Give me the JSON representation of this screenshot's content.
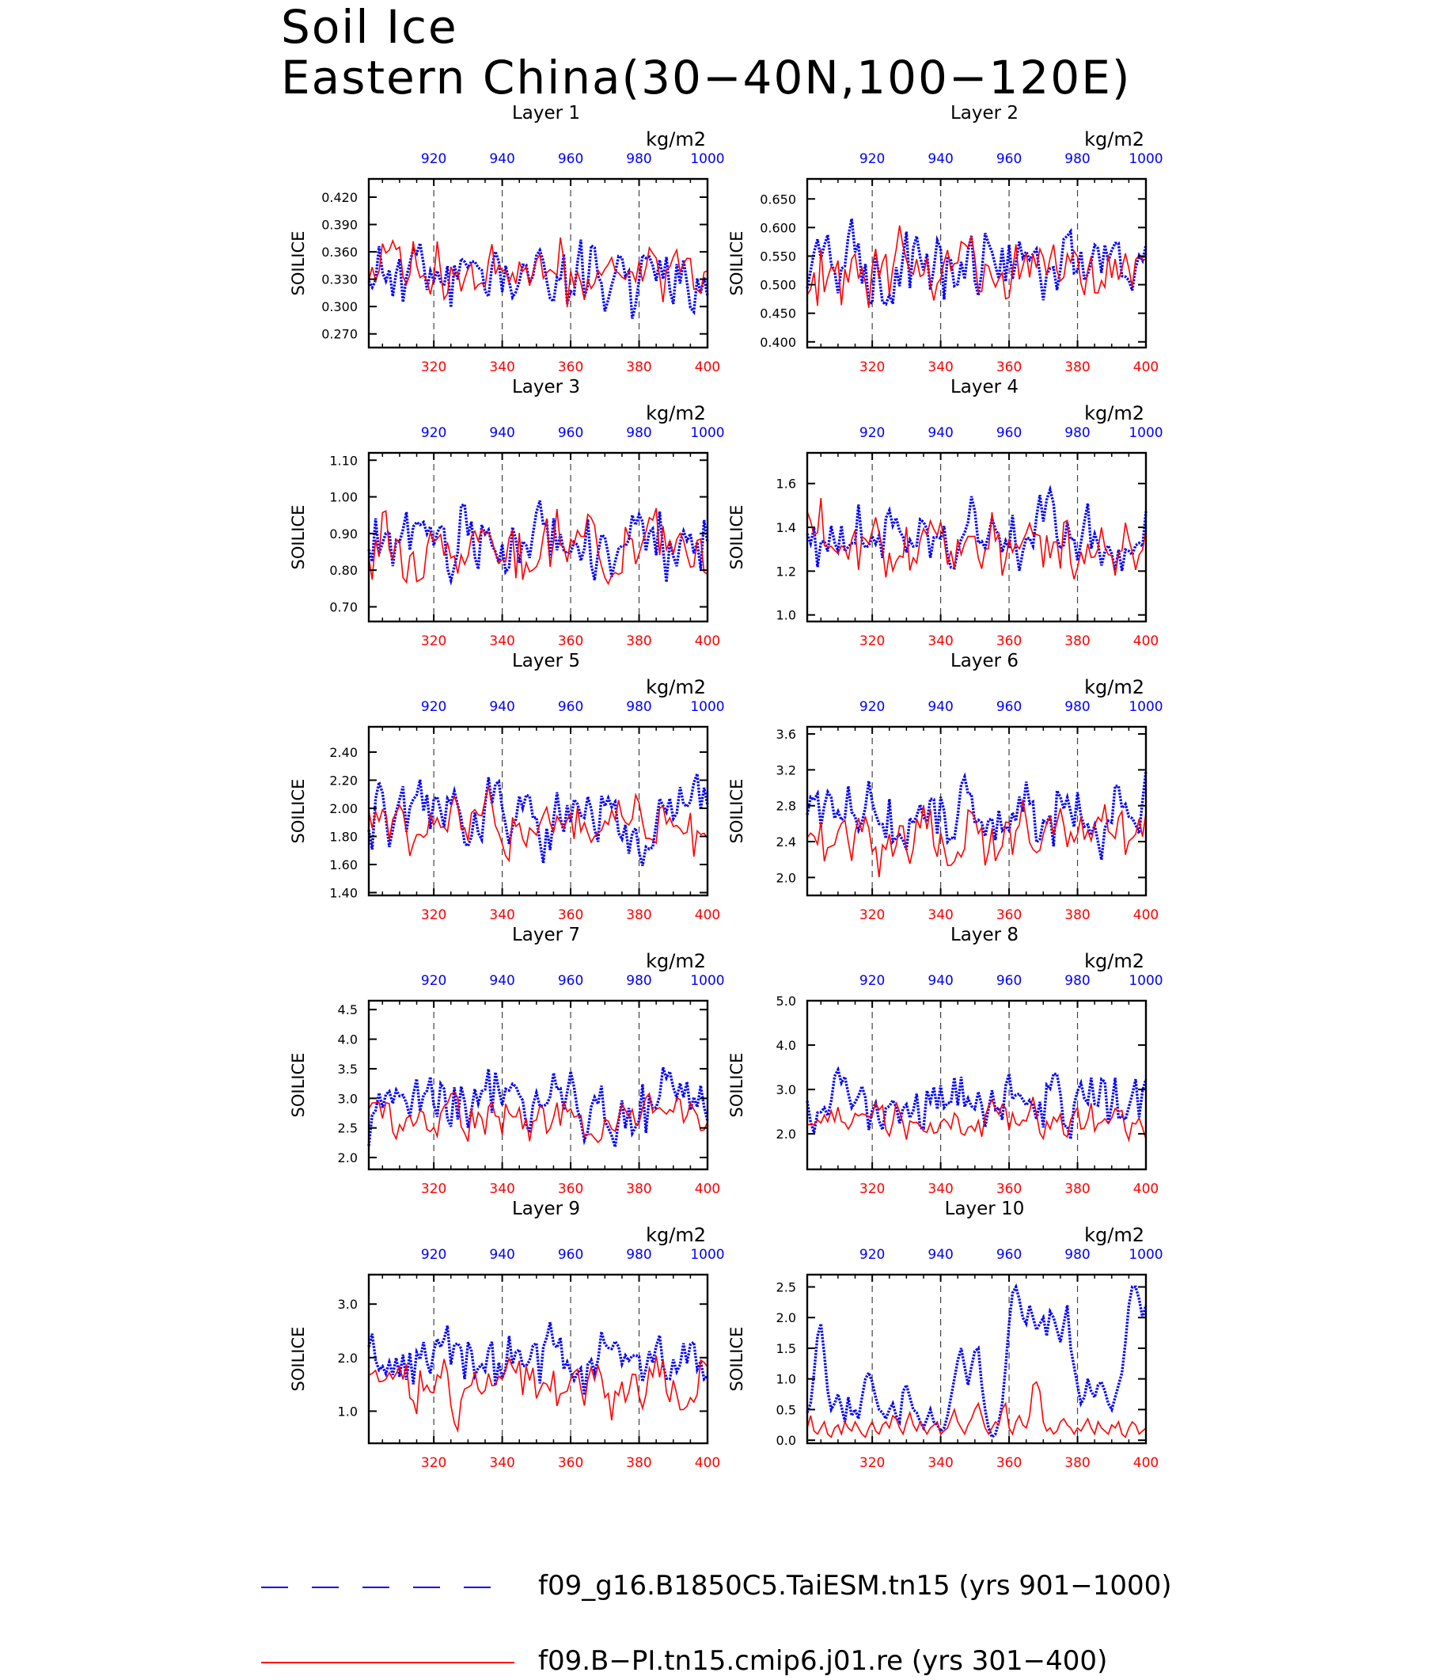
{
  "figure": {
    "title_line1": "Soil Ice",
    "title_line2": "Eastern China(30−40N,100−120E)"
  },
  "colors": {
    "blue": "#0000ff",
    "red": "#ff0000",
    "axis": "#000000",
    "grid": "#444444"
  },
  "legend": [
    {
      "label": "f09_g16.B1850C5.TaiESM.tn15 (yrs 901−1000)",
      "color": "#0000ff",
      "style": "dashed"
    },
    {
      "label": "f09.B−PI.tn15.cmip6.j01.re (yrs 301−400)",
      "color": "#ff0000",
      "style": "solid"
    }
  ],
  "chart_data": [
    {
      "type": "line",
      "title": "Layer 1",
      "ylabel": "SOILICE",
      "units": "kg/m2",
      "bottom_axis": {
        "range": [
          301,
          400
        ],
        "ticks": [
          320,
          340,
          360,
          380,
          400
        ],
        "color": "#ff0000"
      },
      "top_axis": {
        "range": [
          901,
          1000
        ],
        "ticks": [
          920,
          940,
          960,
          980,
          1000
        ],
        "color": "#0000ff"
      },
      "ylim": [
        0.255,
        0.44
      ],
      "yticks": [
        "0.270",
        "0.300",
        "0.330",
        "0.360",
        "0.390",
        "0.420"
      ],
      "series": [
        {
          "color": "#0000ff",
          "style": "dotted",
          "mean": 0.335,
          "amp": 0.035,
          "seed": 11
        },
        {
          "color": "#ff0000",
          "style": "solid",
          "mean": 0.34,
          "amp": 0.032,
          "seed": 12
        }
      ]
    },
    {
      "type": "line",
      "title": "Layer 2",
      "ylabel": "SOILICE",
      "units": "kg/m2",
      "bottom_axis": {
        "range": [
          301,
          400
        ],
        "ticks": [
          320,
          340,
          360,
          380,
          400
        ],
        "color": "#ff0000"
      },
      "top_axis": {
        "range": [
          901,
          1000
        ],
        "ticks": [
          920,
          940,
          960,
          980,
          1000
        ],
        "color": "#0000ff"
      },
      "ylim": [
        0.39,
        0.685
      ],
      "yticks": [
        "0.400",
        "0.450",
        "0.500",
        "0.550",
        "0.600",
        "0.650"
      ],
      "series": [
        {
          "color": "#0000ff",
          "style": "dotted",
          "mean": 0.535,
          "amp": 0.055,
          "seed": 21
        },
        {
          "color": "#ff0000",
          "style": "solid",
          "mean": 0.53,
          "amp": 0.052,
          "seed": 22
        }
      ]
    },
    {
      "type": "line",
      "title": "Layer 3",
      "ylabel": "SOILICE",
      "units": "kg/m2",
      "bottom_axis": {
        "range": [
          301,
          400
        ],
        "ticks": [
          320,
          340,
          360,
          380,
          400
        ],
        "color": "#ff0000"
      },
      "top_axis": {
        "range": [
          901,
          1000
        ],
        "ticks": [
          920,
          940,
          960,
          980,
          1000
        ],
        "color": "#0000ff"
      },
      "ylim": [
        0.66,
        1.12
      ],
      "yticks": [
        "0.70",
        "0.80",
        "0.90",
        "1.00",
        "1.10"
      ],
      "series": [
        {
          "color": "#0000ff",
          "style": "dotted",
          "mean": 0.88,
          "amp": 0.085,
          "seed": 31
        },
        {
          "color": "#ff0000",
          "style": "solid",
          "mean": 0.87,
          "amp": 0.08,
          "seed": 32
        }
      ]
    },
    {
      "type": "line",
      "title": "Layer 4",
      "ylabel": "SOILICE",
      "units": "kg/m2",
      "bottom_axis": {
        "range": [
          301,
          400
        ],
        "ticks": [
          320,
          340,
          360,
          380,
          400
        ],
        "color": "#ff0000"
      },
      "top_axis": {
        "range": [
          901,
          1000
        ],
        "ticks": [
          920,
          940,
          960,
          980,
          1000
        ],
        "color": "#0000ff"
      },
      "ylim": [
        0.97,
        1.74
      ],
      "yticks": [
        "1.0",
        "1.2",
        "1.4",
        "1.6"
      ],
      "series": [
        {
          "color": "#0000ff",
          "style": "dotted",
          "mean": 1.34,
          "amp": 0.15,
          "seed": 41
        },
        {
          "color": "#ff0000",
          "style": "solid",
          "mean": 1.32,
          "amp": 0.14,
          "seed": 42
        }
      ]
    },
    {
      "type": "line",
      "title": "Layer 5",
      "ylabel": "SOILICE",
      "units": "kg/m2",
      "bottom_axis": {
        "range": [
          301,
          400
        ],
        "ticks": [
          320,
          340,
          360,
          380,
          400
        ],
        "color": "#ff0000"
      },
      "top_axis": {
        "range": [
          901,
          1000
        ],
        "ticks": [
          920,
          940,
          960,
          980,
          1000
        ],
        "color": "#0000ff"
      },
      "ylim": [
        1.38,
        2.58
      ],
      "yticks": [
        "1.40",
        "1.60",
        "1.80",
        "2.00",
        "2.20",
        "2.40"
      ],
      "series": [
        {
          "color": "#0000ff",
          "style": "dotted",
          "mean": 1.93,
          "amp": 0.24,
          "seed": 51
        },
        {
          "color": "#ff0000",
          "style": "solid",
          "mean": 1.87,
          "amp": 0.21,
          "seed": 52
        }
      ]
    },
    {
      "type": "line",
      "title": "Layer 6",
      "ylabel": "SOILICE",
      "units": "kg/m2",
      "bottom_axis": {
        "range": [
          301,
          400
        ],
        "ticks": [
          320,
          340,
          360,
          380,
          400
        ],
        "color": "#ff0000"
      },
      "top_axis": {
        "range": [
          901,
          1000
        ],
        "ticks": [
          920,
          940,
          960,
          980,
          1000
        ],
        "color": "#0000ff"
      },
      "ylim": [
        1.8,
        3.68
      ],
      "yticks": [
        "2.0",
        "2.4",
        "2.8",
        "3.2",
        "3.6"
      ],
      "series": [
        {
          "color": "#0000ff",
          "style": "dotted",
          "mean": 2.65,
          "amp": 0.36,
          "seed": 61
        },
        {
          "color": "#ff0000",
          "style": "solid",
          "mean": 2.45,
          "amp": 0.3,
          "seed": 62
        }
      ]
    },
    {
      "type": "line",
      "title": "Layer 7",
      "ylabel": "SOILICE",
      "units": "kg/m2",
      "bottom_axis": {
        "range": [
          301,
          400
        ],
        "ticks": [
          320,
          340,
          360,
          380,
          400
        ],
        "color": "#ff0000"
      },
      "top_axis": {
        "range": [
          901,
          1000
        ],
        "ticks": [
          920,
          940,
          960,
          980,
          1000
        ],
        "color": "#0000ff"
      },
      "ylim": [
        1.8,
        4.65
      ],
      "yticks": [
        "2.0",
        "2.5",
        "3.0",
        "3.5",
        "4.0",
        "4.5"
      ],
      "series": [
        {
          "color": "#0000ff",
          "style": "dotted",
          "mean": 3.0,
          "amp": 0.55,
          "seed": 71
        },
        {
          "color": "#ff0000",
          "style": "solid",
          "mean": 2.65,
          "amp": 0.38,
          "seed": 72
        }
      ]
    },
    {
      "type": "line",
      "title": "Layer 8",
      "ylabel": "SOILICE",
      "units": "kg/m2",
      "bottom_axis": {
        "range": [
          301,
          400
        ],
        "ticks": [
          320,
          340,
          360,
          380,
          400
        ],
        "color": "#ff0000"
      },
      "top_axis": {
        "range": [
          901,
          1000
        ],
        "ticks": [
          920,
          940,
          960,
          980,
          1000
        ],
        "color": "#0000ff"
      },
      "ylim": [
        1.2,
        5.0
      ],
      "yticks": [
        "2.0",
        "3.0",
        "4.0",
        "5.0"
      ],
      "series": [
        {
          "color": "#0000ff",
          "style": "dotted",
          "mean": 2.7,
          "amp": 0.7,
          "seed": 81
        },
        {
          "color": "#ff0000",
          "style": "solid",
          "mean": 2.25,
          "amp": 0.4,
          "seed": 82
        }
      ]
    },
    {
      "type": "line",
      "title": "Layer 9",
      "ylabel": "SOILICE",
      "units": "kg/m2",
      "bottom_axis": {
        "range": [
          301,
          400
        ],
        "ticks": [
          320,
          340,
          360,
          380,
          400
        ],
        "color": "#ff0000"
      },
      "top_axis": {
        "range": [
          901,
          1000
        ],
        "ticks": [
          920,
          940,
          960,
          980,
          1000
        ],
        "color": "#0000ff"
      },
      "ylim": [
        0.4,
        3.55
      ],
      "yticks": [
        "1.0",
        "2.0",
        "3.0"
      ],
      "series": [
        {
          "color": "#0000ff",
          "style": "dotted",
          "mean": 1.9,
          "amp": 0.55,
          "seed": 91
        },
        {
          "color": "#ff0000",
          "style": "solid",
          "mean": 1.5,
          "amp": 0.45,
          "seed": 92
        }
      ]
    },
    {
      "type": "line",
      "title": "Layer 10",
      "ylabel": "SOILICE",
      "units": "kg/m2",
      "bottom_axis": {
        "range": [
          301,
          400
        ],
        "ticks": [
          320,
          340,
          360,
          380,
          400
        ],
        "color": "#ff0000"
      },
      "top_axis": {
        "range": [
          901,
          1000
        ],
        "ticks": [
          920,
          940,
          960,
          980,
          1000
        ],
        "color": "#0000ff"
      },
      "ylim": [
        -0.05,
        2.7
      ],
      "yticks": [
        "0.0",
        "0.5",
        "1.0",
        "1.5",
        "2.0",
        "2.5"
      ],
      "series": [
        {
          "color": "#0000ff",
          "style": "dotted",
          "values": [
            0.45,
            0.6,
            1.1,
            1.7,
            1.9,
            1.4,
            0.8,
            0.5,
            0.6,
            0.75,
            0.55,
            0.3,
            0.7,
            0.4,
            0.5,
            0.35,
            0.7,
            1.0,
            1.1,
            0.95,
            0.7,
            0.5,
            0.45,
            0.35,
            0.5,
            0.6,
            0.4,
            0.3,
            0.8,
            0.9,
            0.7,
            0.5,
            0.45,
            0.3,
            0.2,
            0.35,
            0.5,
            0.3,
            0.25,
            0.15,
            0.2,
            0.4,
            0.7,
            1.0,
            1.3,
            1.5,
            1.2,
            0.9,
            1.2,
            1.45,
            1.5,
            0.9,
            0.5,
            0.2,
            0.05,
            0.1,
            0.3,
            0.6,
            1.2,
            1.9,
            2.4,
            2.5,
            2.3,
            2.0,
            1.9,
            2.2,
            2.0,
            1.8,
            1.9,
            2.0,
            1.7,
            2.1,
            2.0,
            1.8,
            1.6,
            1.9,
            2.2,
            1.5,
            1.2,
            0.9,
            0.6,
            0.7,
            1.0,
            0.8,
            0.7,
            0.9,
            0.95,
            0.8,
            0.6,
            0.5,
            0.7,
            0.9,
            1.1,
            1.6,
            2.2,
            2.5,
            2.5,
            2.3,
            2.0,
            2.2
          ]
        },
        {
          "color": "#ff0000",
          "style": "solid",
          "values": [
            0.2,
            0.4,
            0.15,
            0.1,
            0.2,
            0.3,
            0.1,
            0.05,
            0.2,
            0.25,
            0.1,
            0.3,
            0.2,
            0.15,
            0.3,
            0.2,
            0.1,
            0.05,
            0.2,
            0.3,
            0.15,
            0.1,
            0.25,
            0.3,
            0.2,
            0.4,
            0.35,
            0.2,
            0.1,
            0.3,
            0.45,
            0.25,
            0.15,
            0.3,
            0.2,
            0.1,
            0.2,
            0.25,
            0.3,
            0.1,
            0.15,
            0.2,
            0.35,
            0.5,
            0.3,
            0.2,
            0.1,
            0.25,
            0.35,
            0.5,
            0.6,
            0.4,
            0.2,
            0.1,
            0.2,
            0.3,
            0.25,
            0.5,
            0.6,
            0.2,
            0.1,
            0.3,
            0.4,
            0.25,
            0.2,
            0.4,
            0.9,
            0.95,
            0.8,
            0.3,
            0.15,
            0.2,
            0.1,
            0.15,
            0.3,
            0.35,
            0.25,
            0.2,
            0.1,
            0.2,
            0.15,
            0.25,
            0.35,
            0.2,
            0.1,
            0.3,
            0.2,
            0.15,
            0.1,
            0.25,
            0.2,
            0.3,
            0.1,
            0.05,
            0.2,
            0.3,
            0.25,
            0.1,
            0.15,
            0.2
          ]
        }
      ]
    }
  ]
}
